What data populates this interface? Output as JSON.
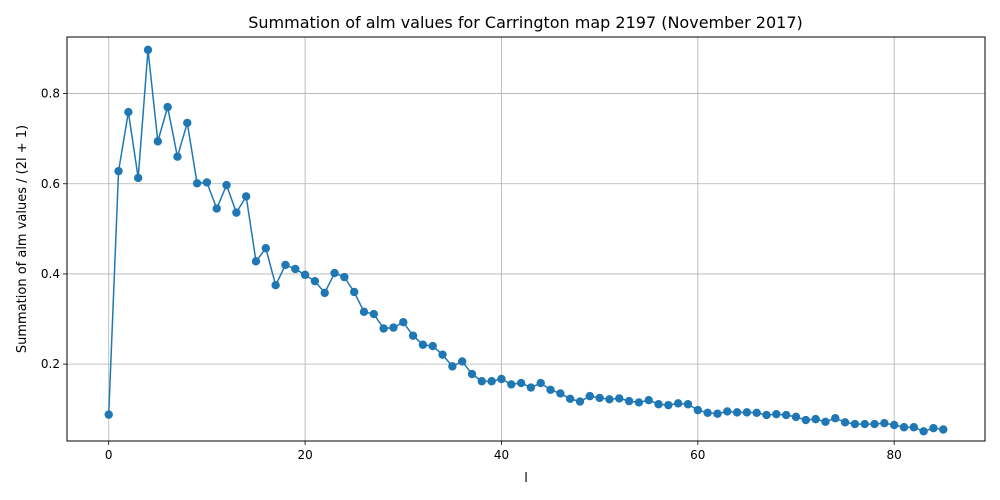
{
  "chart_data": {
    "type": "line",
    "title": "Summation of alm values for Carrington map 2197 (November 2017)",
    "xlabel": "l",
    "ylabel": "Summation of alm values / (2l + 1)",
    "xlim": [
      -4.25,
      89.25
    ],
    "ylim": [
      0.0295,
      0.9255
    ],
    "xticks": [
      0,
      20,
      40,
      60,
      80
    ],
    "yticks": [
      0.2,
      0.4,
      0.6,
      0.8
    ],
    "xtick_labels": [
      "0",
      "20",
      "40",
      "60",
      "80"
    ],
    "ytick_labels": [
      "0.2",
      "0.4",
      "0.6",
      "0.8"
    ],
    "grid": true,
    "series": [
      {
        "color": "#1f77b4",
        "marker": "circle",
        "x": [
          0,
          1,
          2,
          3,
          4,
          5,
          6,
          7,
          8,
          9,
          10,
          11,
          12,
          13,
          14,
          15,
          16,
          17,
          18,
          19,
          20,
          21,
          22,
          23,
          24,
          25,
          26,
          27,
          28,
          29,
          30,
          31,
          32,
          33,
          34,
          35,
          36,
          37,
          38,
          39,
          40,
          41,
          42,
          43,
          44,
          45,
          46,
          47,
          48,
          49,
          50,
          51,
          52,
          53,
          54,
          55,
          56,
          57,
          58,
          59,
          60,
          61,
          62,
          63,
          64,
          65,
          66,
          67,
          68,
          69,
          70,
          71,
          72,
          73,
          74,
          75,
          76,
          77,
          78,
          79,
          80,
          81,
          82,
          83,
          84,
          85
        ],
        "y": [
          0.088,
          0.628,
          0.759,
          0.613,
          0.897,
          0.694,
          0.77,
          0.66,
          0.735,
          0.601,
          0.603,
          0.545,
          0.597,
          0.536,
          0.572,
          0.428,
          0.457,
          0.375,
          0.42,
          0.411,
          0.398,
          0.384,
          0.358,
          0.402,
          0.393,
          0.36,
          0.316,
          0.311,
          0.279,
          0.281,
          0.293,
          0.263,
          0.243,
          0.24,
          0.221,
          0.195,
          0.206,
          0.178,
          0.162,
          0.162,
          0.167,
          0.155,
          0.158,
          0.148,
          0.158,
          0.143,
          0.135,
          0.123,
          0.117,
          0.129,
          0.125,
          0.122,
          0.124,
          0.118,
          0.115,
          0.12,
          0.111,
          0.109,
          0.113,
          0.111,
          0.098,
          0.092,
          0.09,
          0.095,
          0.093,
          0.093,
          0.092,
          0.087,
          0.089,
          0.087,
          0.083,
          0.076,
          0.078,
          0.072,
          0.08,
          0.071,
          0.067,
          0.067,
          0.067,
          0.069,
          0.065,
          0.06,
          0.06,
          0.051,
          0.058,
          0.055
        ]
      }
    ]
  }
}
